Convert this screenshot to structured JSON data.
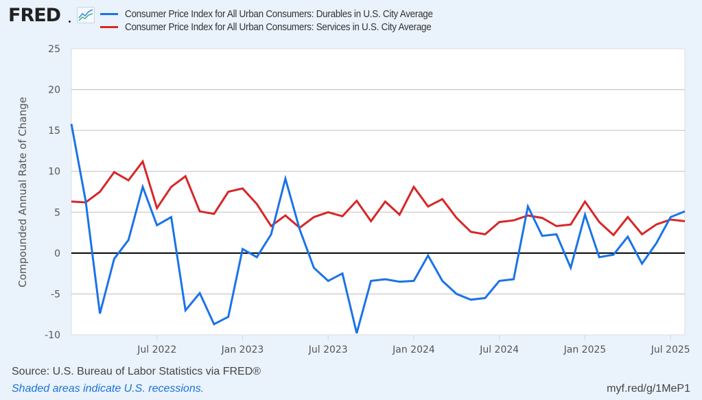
{
  "header": {
    "logo_text": "FRED",
    "logo_icon": "line-chart-icon"
  },
  "footer": {
    "source": "Source: U.S. Bureau of Labor Statistics via FRED®",
    "recession_note": "Shaded areas indicate U.S. recessions.",
    "short_url": "myf.red/g/1MeP1"
  },
  "colors": {
    "durables": "#1a73e8",
    "services": "#d62728",
    "zero_line": "#000000",
    "grid": "#cccccc",
    "background": "#eaf2fb"
  },
  "chart_data": {
    "type": "line",
    "title": "",
    "xlabel": "",
    "ylabel": "Compounded Annual Rate of Change",
    "ylim": [
      -10,
      25
    ],
    "yticks": [
      -10,
      -5,
      0,
      5,
      10,
      15,
      20,
      25
    ],
    "grid": true,
    "legend_position": "top",
    "x_start": "2022-01",
    "x_end": "2025-08",
    "xtick_labels": [
      "Jul 2022",
      "Jan 2023",
      "Jul 2023",
      "Jan 2024",
      "Jul 2024",
      "Jan 2025",
      "Jul 2025"
    ],
    "xtick_months": [
      "2022-07",
      "2023-01",
      "2023-07",
      "2024-01",
      "2024-07",
      "2025-01",
      "2025-07"
    ],
    "x": [
      "2022-01",
      "2022-02",
      "2022-03",
      "2022-04",
      "2022-05",
      "2022-06",
      "2022-07",
      "2022-08",
      "2022-09",
      "2022-10",
      "2022-11",
      "2022-12",
      "2023-01",
      "2023-02",
      "2023-03",
      "2023-04",
      "2023-05",
      "2023-06",
      "2023-07",
      "2023-08",
      "2023-09",
      "2023-10",
      "2023-11",
      "2023-12",
      "2024-01",
      "2024-02",
      "2024-03",
      "2024-04",
      "2024-05",
      "2024-06",
      "2024-07",
      "2024-08",
      "2024-09",
      "2024-10",
      "2024-11",
      "2024-12",
      "2025-01",
      "2025-02",
      "2025-03",
      "2025-04",
      "2025-05",
      "2025-06",
      "2025-07",
      "2025-08"
    ],
    "series": [
      {
        "name": "Consumer Price Index for All Urban Consumers: Durables in U.S. City Average",
        "color": "#1a73e8",
        "values": [
          15.8,
          6.4,
          -7.4,
          -0.7,
          1.6,
          8.1,
          3.4,
          4.4,
          -7.0,
          -4.9,
          -8.7,
          -7.8,
          0.5,
          -0.5,
          2.3,
          9.1,
          2.9,
          -1.8,
          -3.4,
          -2.5,
          -9.8,
          -3.4,
          -3.2,
          -3.5,
          -3.4,
          -0.3,
          -3.4,
          -5.0,
          -5.7,
          -5.5,
          -3.4,
          -3.2,
          5.7,
          2.1,
          2.3,
          -1.8,
          4.7,
          -0.5,
          -0.2,
          2.0,
          -1.3,
          1.2,
          4.4,
          5.1
        ]
      },
      {
        "name": "Consumer Price Index for All Urban Consumers: Services in U.S. City Average",
        "color": "#d62728",
        "values": [
          6.3,
          6.2,
          7.5,
          9.9,
          8.9,
          11.2,
          5.5,
          8.1,
          9.4,
          5.1,
          4.8,
          7.5,
          7.9,
          6.0,
          3.3,
          4.6,
          3.1,
          4.4,
          5.0,
          4.5,
          6.4,
          3.9,
          6.3,
          4.7,
          8.1,
          5.7,
          6.6,
          4.3,
          2.6,
          2.3,
          3.8,
          4.0,
          4.6,
          4.3,
          3.3,
          3.5,
          6.3,
          3.8,
          2.2,
          4.4,
          2.3,
          3.5,
          4.1,
          3.9
        ]
      }
    ]
  }
}
